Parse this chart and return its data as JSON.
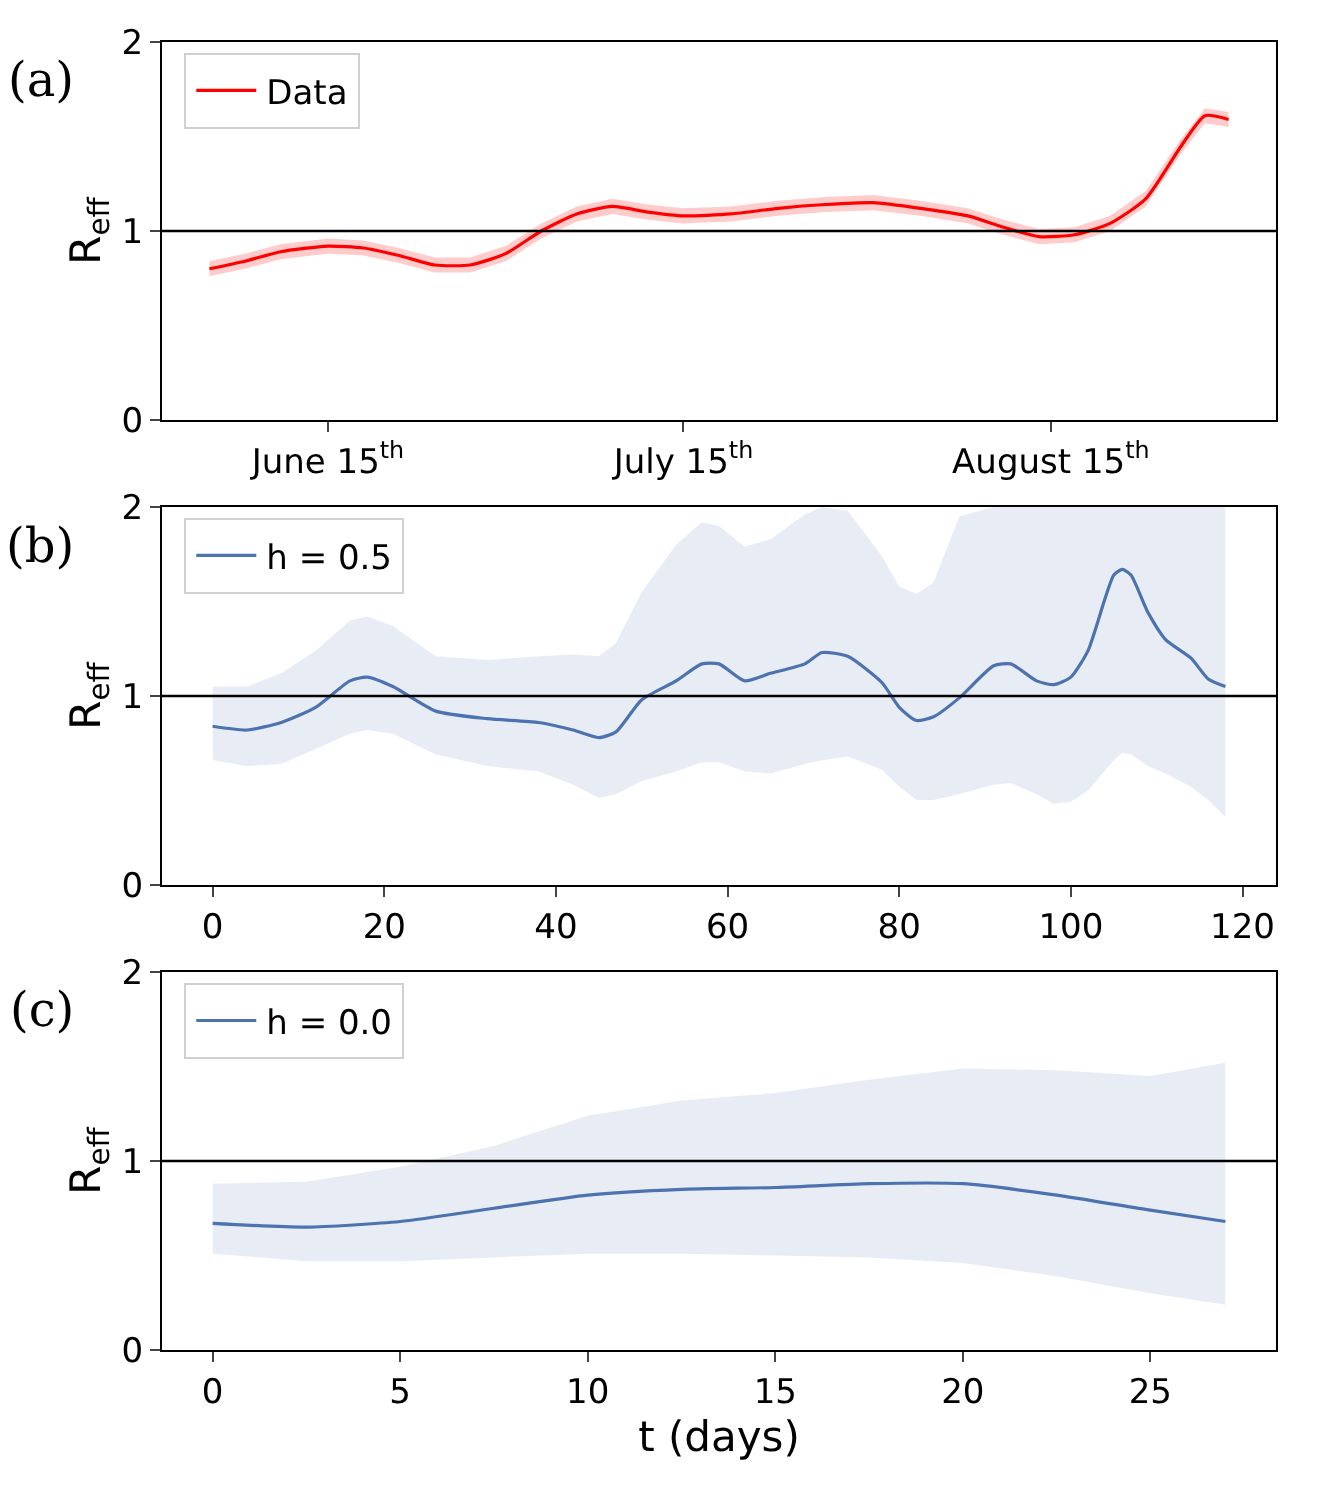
{
  "chart_data": [
    {
      "type": "line",
      "annotations": [
        "(a)"
      ],
      "ylabel": "R$_{eff}$",
      "legend": "top left",
      "marker": "none",
      "line_style": "solid",
      "x": [
        "--06-05",
        "--06-08",
        "--06-11",
        "--06-15",
        "--06-18",
        "--06-21",
        "--06-24",
        "--06-27",
        "--06-30",
        "--07-03",
        "--07-06",
        "--07-09",
        "--07-12",
        "--07-15",
        "--07-19",
        "--07-23",
        "--07-27",
        "--07-31",
        "--08-04",
        "--08-08",
        "--08-11",
        "--08-14",
        "--08-17",
        "--08-20",
        "--08-23",
        "--08-26",
        "--08-28",
        "--08-30"
      ],
      "series": [
        {
          "name": "Data",
          "color": "#ff0000",
          "values": [
            0.8,
            0.84,
            0.89,
            0.92,
            0.91,
            0.87,
            0.82,
            0.82,
            0.88,
            1.0,
            1.09,
            1.13,
            1.1,
            1.08,
            1.09,
            1.12,
            1.14,
            1.15,
            1.12,
            1.08,
            1.02,
            0.97,
            0.98,
            1.04,
            1.17,
            1.45,
            1.61,
            1.59
          ],
          "lower": [
            0.76,
            0.8,
            0.85,
            0.88,
            0.87,
            0.83,
            0.78,
            0.78,
            0.84,
            0.96,
            1.05,
            1.09,
            1.06,
            1.04,
            1.05,
            1.08,
            1.1,
            1.11,
            1.08,
            1.04,
            0.98,
            0.93,
            0.94,
            1.0,
            1.13,
            1.41,
            1.57,
            1.55
          ],
          "upper": [
            0.84,
            0.88,
            0.93,
            0.96,
            0.95,
            0.91,
            0.86,
            0.86,
            0.92,
            1.04,
            1.13,
            1.17,
            1.14,
            1.12,
            1.13,
            1.16,
            1.18,
            1.19,
            1.16,
            1.12,
            1.06,
            1.01,
            1.02,
            1.08,
            1.21,
            1.49,
            1.65,
            1.63
          ]
        }
      ],
      "xlim": [
        "--06-01",
        "--09-03"
      ],
      "xticks": [
        {
          "value": "--06-15",
          "label": "June 15$^{th}$"
        },
        {
          "value": "--07-15",
          "label": "July 15$^{th}$"
        },
        {
          "value": "--08-15",
          "label": "August 15$^{th}$"
        }
      ],
      "ylim": [
        0,
        2
      ],
      "yticks": [
        0,
        1,
        2
      ],
      "ref_lines": [
        {
          "axis": "y",
          "value": 1,
          "color": "#000000"
        }
      ]
    },
    {
      "type": "line",
      "annotations": [
        "(b)"
      ],
      "ylabel": "R$_{eff}$",
      "legend": "top left",
      "marker": "none",
      "line_style": "solid",
      "x": [
        0,
        4,
        8,
        12,
        16,
        18,
        21,
        26,
        32,
        38,
        42,
        45,
        47,
        50,
        54,
        57,
        59,
        62,
        65,
        69,
        71,
        74,
        78,
        80,
        82,
        84,
        87,
        91,
        93,
        96,
        98,
        100,
        102,
        105,
        106,
        107,
        109,
        111,
        114,
        116,
        118
      ],
      "series": [
        {
          "name": "h = 0.5",
          "color": "#4c72b0",
          "values": [
            0.84,
            0.82,
            0.86,
            0.94,
            1.08,
            1.1,
            1.05,
            0.92,
            0.88,
            0.86,
            0.82,
            0.78,
            0.81,
            0.98,
            1.08,
            1.17,
            1.17,
            1.08,
            1.12,
            1.17,
            1.23,
            1.21,
            1.07,
            0.94,
            0.87,
            0.89,
            0.99,
            1.16,
            1.17,
            1.08,
            1.06,
            1.1,
            1.24,
            1.64,
            1.67,
            1.64,
            1.44,
            1.3,
            1.2,
            1.09,
            1.05
          ],
          "lower": [
            0.66,
            0.63,
            0.64,
            0.72,
            0.8,
            0.82,
            0.8,
            0.69,
            0.63,
            0.6,
            0.53,
            0.46,
            0.48,
            0.55,
            0.6,
            0.65,
            0.65,
            0.6,
            0.59,
            0.64,
            0.66,
            0.68,
            0.61,
            0.52,
            0.45,
            0.45,
            0.48,
            0.53,
            0.54,
            0.48,
            0.43,
            0.44,
            0.5,
            0.66,
            0.7,
            0.69,
            0.63,
            0.59,
            0.52,
            0.45,
            0.36
          ],
          "upper": [
            1.05,
            1.05,
            1.12,
            1.24,
            1.4,
            1.42,
            1.37,
            1.21,
            1.19,
            1.21,
            1.22,
            1.21,
            1.28,
            1.55,
            1.8,
            1.92,
            1.9,
            1.79,
            1.83,
            1.96,
            2.0,
            1.98,
            1.74,
            1.58,
            1.54,
            1.6,
            1.95,
            2.0,
            2.0,
            2.0,
            2.0,
            2.0,
            2.0,
            2.0,
            2.0,
            2.0,
            2.0,
            2.0,
            2.0,
            2.0,
            2.0
          ]
        }
      ],
      "xlim": [
        -5.9,
        123.9
      ],
      "xticks": [
        0,
        20,
        40,
        60,
        80,
        100,
        120
      ],
      "ylim": [
        0,
        2
      ],
      "yticks": [
        0,
        1,
        2
      ],
      "ref_lines": [
        {
          "axis": "y",
          "value": 1,
          "color": "#000000"
        }
      ]
    },
    {
      "type": "line",
      "annotations": [
        "(c)"
      ],
      "ylabel": "R$_{eff}$",
      "xlabel": "t (days)",
      "legend": "top left",
      "marker": "none",
      "line_style": "solid",
      "x": [
        0,
        2.5,
        5,
        7.5,
        10,
        12.5,
        15,
        17.5,
        20,
        22.5,
        25,
        27
      ],
      "series": [
        {
          "name": "h = 0.0",
          "color": "#4c72b0",
          "values": [
            0.67,
            0.65,
            0.68,
            0.75,
            0.82,
            0.85,
            0.86,
            0.88,
            0.88,
            0.82,
            0.74,
            0.68
          ],
          "lower": [
            0.51,
            0.47,
            0.47,
            0.49,
            0.51,
            0.51,
            0.5,
            0.49,
            0.46,
            0.39,
            0.3,
            0.24
          ],
          "upper": [
            0.88,
            0.89,
            0.97,
            1.08,
            1.24,
            1.32,
            1.36,
            1.43,
            1.49,
            1.48,
            1.45,
            1.52
          ]
        }
      ],
      "xlim": [
        -1.35,
        28.35
      ],
      "xticks": [
        0,
        5,
        10,
        15,
        20,
        25
      ],
      "ylim": [
        0,
        2
      ],
      "yticks": [
        0,
        1,
        2
      ],
      "ref_lines": [
        {
          "axis": "y",
          "value": 1,
          "color": "#000000"
        }
      ]
    }
  ]
}
